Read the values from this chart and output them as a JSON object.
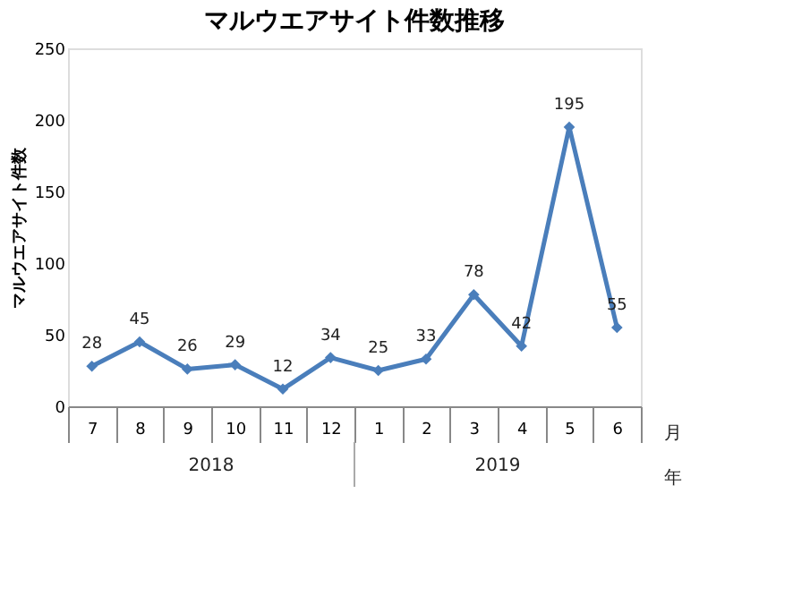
{
  "chart_data": {
    "type": "line",
    "title": "マルウエアサイト件数推移",
    "ylabel": "マルウエアサイト件数",
    "xlabel": "月",
    "categories": [
      "7",
      "8",
      "9",
      "10",
      "11",
      "12",
      "1",
      "2",
      "3",
      "4",
      "5",
      "6"
    ],
    "series": [
      {
        "color": "#4a7ebb",
        "values": [
          28,
          45,
          26,
          29,
          12,
          34,
          25,
          33,
          78,
          42,
          195,
          55
        ]
      }
    ],
    "annotations": [
      "2018",
      "2019",
      "年"
    ],
    "ylim": [
      0,
      250
    ],
    "yticks": [
      0,
      50,
      100,
      150,
      200,
      250
    ],
    "grid": false,
    "marker": "diamond",
    "line_style": "solid",
    "data_labels": true
  }
}
